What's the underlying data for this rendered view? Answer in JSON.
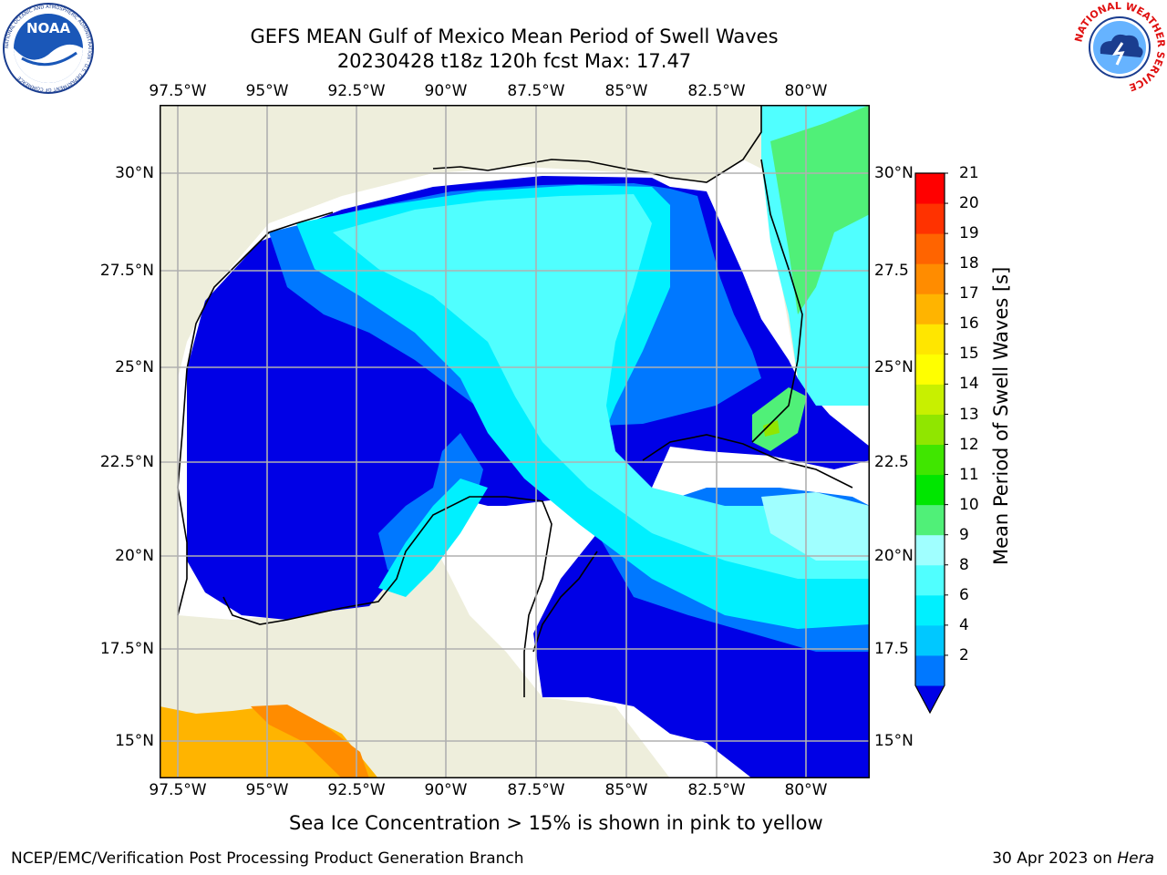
{
  "title": {
    "line1": "GEFS MEAN Gulf of Mexico Mean Period of Swell Waves",
    "line2": "20230428 t18z 120h fcst   Max: 17.47"
  },
  "logos": {
    "left": {
      "name": "noaa-logo",
      "text": "NOAA",
      "ring_text": "NATIONAL OCEANIC AND ATMOSPHERIC ADMINISTRATION · U.S. DEPARTMENT OF COMMERCE"
    },
    "right": {
      "name": "nws-logo",
      "ring_text": "NATIONAL WEATHER SERVICE"
    }
  },
  "map": {
    "lon_labels": [
      "97.5°W",
      "95°W",
      "92.5°W",
      "90°W",
      "87.5°W",
      "85°W",
      "82.5°W",
      "80°W"
    ],
    "lat_labels_left": [
      "30°N",
      "27.5°N",
      "25°N",
      "22.5°N",
      "20°N",
      "17.5°N",
      "15°N"
    ],
    "lat_labels_right": [
      "30°N",
      "27.5",
      "25°N",
      "22.5",
      "20°N",
      "17.5",
      "15°N"
    ],
    "land_color": "#eeeedc",
    "grid_color": "#b0b0b0"
  },
  "colorbar": {
    "label": "Mean Period of Swell Waves [s]",
    "ticks": [
      "21",
      "20",
      "19",
      "18",
      "17",
      "16",
      "15",
      "14",
      "13",
      "12",
      "11",
      "10",
      "9",
      "8",
      "6",
      "4",
      "2"
    ],
    "colors_bottom_to_top": [
      "#0000e6",
      "#0078ff",
      "#00c8ff",
      "#00f0ff",
      "#50ffff",
      "#a0ffff",
      "#50f078",
      "#00e600",
      "#40e600",
      "#90e600",
      "#c8f000",
      "#ffff00",
      "#ffe600",
      "#ffb400",
      "#ff8c00",
      "#ff6400",
      "#ff3200",
      "#ff0000"
    ]
  },
  "footnote": "Sea Ice Concentration > 15% is shown in pink to yellow",
  "footer": {
    "left": "NCEP/EMC/Verification Post Processing Product Generation Branch",
    "right_prefix": "30 Apr 2023 on ",
    "right_host": "Hera"
  }
}
